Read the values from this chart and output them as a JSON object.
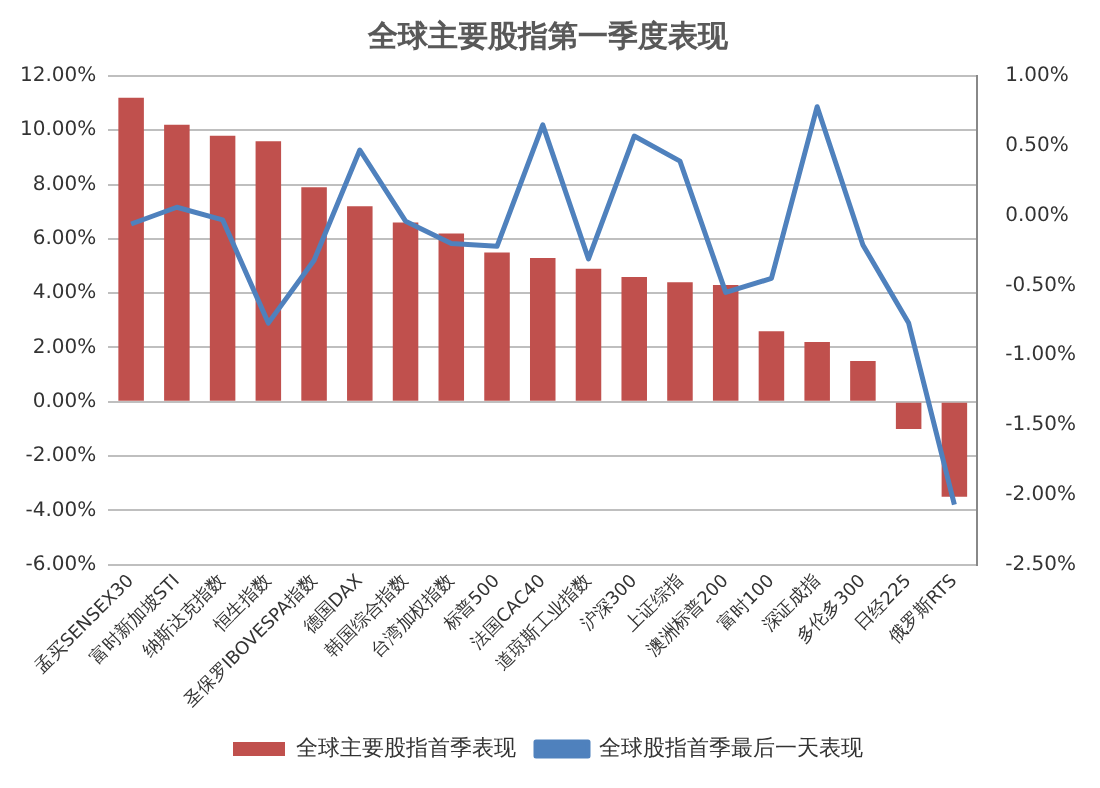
{
  "chart_data": {
    "type": "bar",
    "title": "全球主要股指第一季度表现",
    "categories": [
      "孟买SENSEX30",
      "富时新加坡STI",
      "纳斯达克指数",
      "恒生指数",
      "圣保罗IBOVESPA指数",
      "德国DAX",
      "韩国综合指数",
      "台湾加权指数",
      "标普500",
      "法国CAC40",
      "道琼斯工业指数",
      "沪深300",
      "上证综指",
      "澳洲标普200",
      "富时100",
      "深证成指",
      "多伦多300",
      "日经225",
      "俄罗斯RTS"
    ],
    "series": [
      {
        "name": "全球主要股指首季表现",
        "color": "#c0504d",
        "values": [
          11.2,
          10.2,
          9.8,
          9.6,
          7.9,
          7.2,
          6.6,
          6.2,
          5.5,
          5.3,
          4.9,
          4.6,
          4.4,
          4.3,
          2.6,
          2.2,
          1.5,
          -1.0,
          -3.5
        ]
      },
      {
        "name": "全球股指首季最后一天表现",
        "type": "line",
        "axis": "y2",
        "color": "#4f81bd",
        "values": [
          -0.06,
          0.06,
          -0.03,
          -0.77,
          -0.32,
          0.47,
          -0.04,
          -0.2,
          -0.22,
          0.65,
          -0.31,
          0.57,
          0.39,
          -0.55,
          -0.45,
          0.78,
          -0.21,
          -0.77,
          -2.07
        ]
      }
    ],
    "ylim": [
      -6,
      12
    ],
    "yticks": [
      {
        "value": -6,
        "label": "-6.00%"
      },
      {
        "value": -4,
        "label": "-4.00%"
      },
      {
        "value": -2,
        "label": "-2.00%"
      },
      {
        "value": 0,
        "label": "0.00%"
      },
      {
        "value": 2,
        "label": "2.00%"
      },
      {
        "value": 4,
        "label": "4.00%"
      },
      {
        "value": 6,
        "label": "6.00%"
      },
      {
        "value": 8,
        "label": "8.00%"
      },
      {
        "value": 10,
        "label": "10.00%"
      },
      {
        "value": 12,
        "label": "12.00%"
      }
    ],
    "y2lim": [
      -2.5,
      1
    ],
    "y2ticks": [
      {
        "value": -2.5,
        "label": "-2.50%"
      },
      {
        "value": -2,
        "label": "-2.00%"
      },
      {
        "value": -1.5,
        "label": "-1.50%"
      },
      {
        "value": -1,
        "label": "-1.00%"
      },
      {
        "value": -0.5,
        "label": "-0.50%"
      },
      {
        "value": 0,
        "label": "0.00%"
      },
      {
        "value": 0.5,
        "label": "0.50%"
      },
      {
        "value": 1,
        "label": "1.00%"
      }
    ],
    "grid": "y",
    "legend": "bottom",
    "marker": "none"
  }
}
